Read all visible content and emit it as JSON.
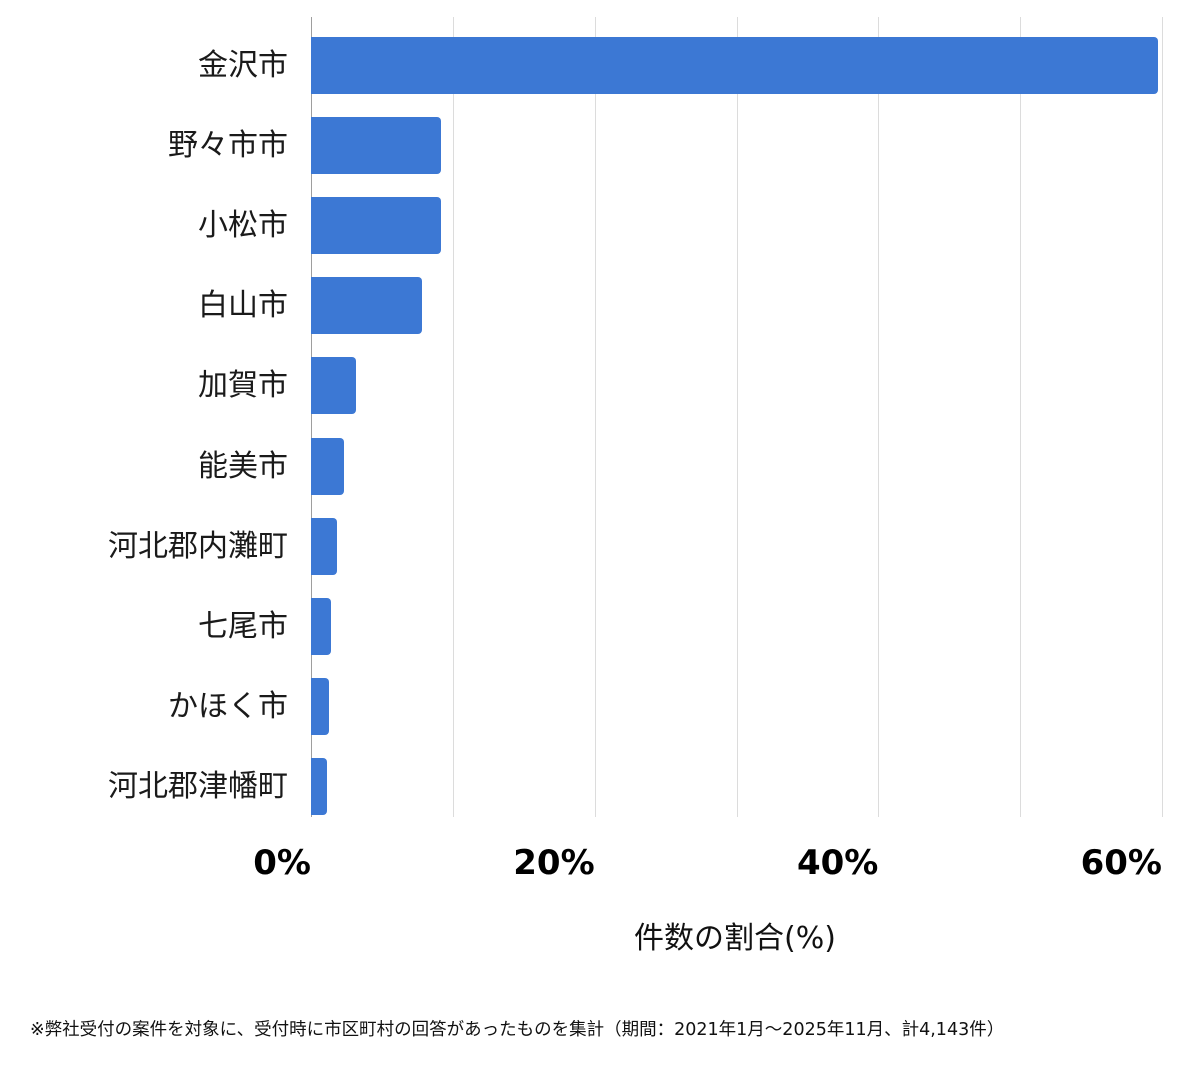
{
  "chart_data": {
    "type": "bar",
    "orientation": "horizontal",
    "title": "",
    "xlabel": "件数の割合(%)",
    "ylabel": "",
    "xlim": [
      0,
      60
    ],
    "x_ticks": [
      "0%",
      "20%",
      "40%",
      "60%"
    ],
    "grid": true,
    "grid_step": 10,
    "legend": null,
    "bar_color": "#3c78d4",
    "categories": [
      "金沢市",
      "野々市市",
      "小松市",
      "白山市",
      "加賀市",
      "能美市",
      "河北郡内灘町",
      "七尾市",
      "かほく市",
      "河北郡津幡町"
    ],
    "values": [
      59.7,
      9.2,
      9.2,
      7.8,
      3.2,
      2.3,
      1.8,
      1.4,
      1.3,
      1.1
    ]
  },
  "axis": {
    "tick_labels": [
      "0%",
      "20%",
      "40%",
      "60%"
    ],
    "title": "件数の割合(%)"
  },
  "footnote": "※弊社受付の案件を対象に、受付時に市区町村の回答があったものを集計（期間：2021年1月～2025年11月、計4,143件）"
}
